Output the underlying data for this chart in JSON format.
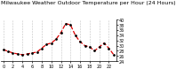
{
  "title": "Milwaukee Weather Outdoor Temperature per Hour (24 Hours)",
  "hours": [
    0,
    1,
    2,
    3,
    4,
    5,
    6,
    7,
    8,
    9,
    10,
    11,
    12,
    13,
    14,
    15,
    16,
    17,
    18,
    19,
    20,
    21,
    22,
    23
  ],
  "temperatures": [
    28.5,
    27.8,
    27.2,
    26.8,
    26.5,
    26.8,
    27.2,
    27.5,
    29.0,
    30.5,
    31.0,
    32.5,
    35.0,
    38.5,
    38.0,
    34.0,
    31.5,
    30.0,
    29.5,
    28.0,
    29.5,
    31.0,
    29.0,
    26.5
  ],
  "line_color": "#dd0000",
  "marker_color": "#000000",
  "bg_color": "#ffffff",
  "grid_color": "#999999",
  "ylim": [
    24,
    40
  ],
  "ytick_values": [
    24,
    26,
    28,
    30,
    32,
    34,
    36,
    38,
    40
  ],
  "ytick_labels": [
    "24",
    "26",
    "28",
    "30",
    "32",
    "34",
    "36",
    "38",
    "40"
  ],
  "xtick_values": [
    0,
    2,
    4,
    6,
    8,
    10,
    12,
    14,
    16,
    18,
    20,
    22
  ],
  "xtick_labels": [
    "0",
    "2",
    "4",
    "6",
    "8",
    "10",
    "12",
    "14",
    "16",
    "18",
    "20",
    "22"
  ],
  "title_fontsize": 4.5,
  "tick_fontsize": 3.5,
  "fig_width": 1.6,
  "fig_height": 0.87,
  "line_width": 0.9,
  "marker_size": 2.0
}
